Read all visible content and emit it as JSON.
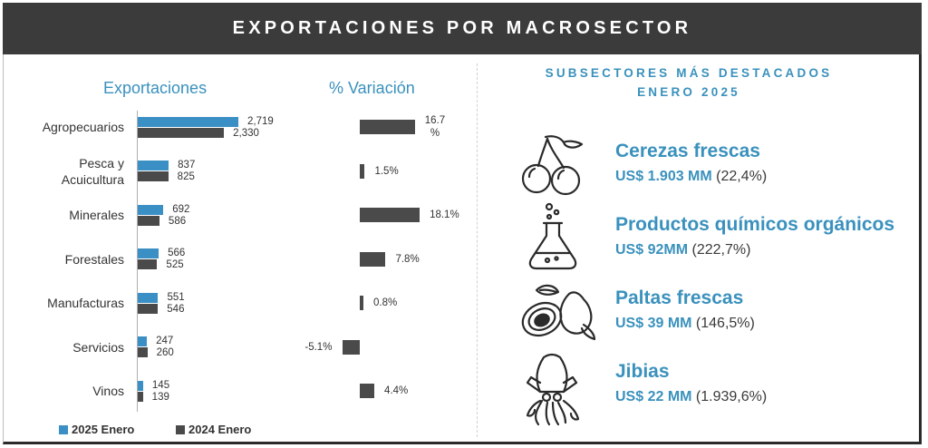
{
  "header": {
    "title": "EXPORTACIONES POR MACROSECTOR"
  },
  "left_panel": {
    "exports_title": "Exportaciones",
    "variation_title": "% Variación",
    "legend": [
      {
        "label": "2025 Enero",
        "color": "#3a8fc4"
      },
      {
        "label": "2024 Enero",
        "color": "#4a4a4a"
      }
    ]
  },
  "chart_data": [
    {
      "type": "bar",
      "orientation": "horizontal",
      "title": "Exportaciones",
      "categories": [
        "Agropecuarios",
        "Pesca y Acuicultura",
        "Minerales",
        "Forestales",
        "Manufacturas",
        "Servicios",
        "Vinos"
      ],
      "category_lines": [
        [
          "Agropecuarios"
        ],
        [
          "Pesca y",
          "Acuicultura"
        ],
        [
          "Minerales"
        ],
        [
          "Forestales"
        ],
        [
          "Manufacturas"
        ],
        [
          "Servicios"
        ],
        [
          "Vinos"
        ]
      ],
      "series": [
        {
          "name": "2025 Enero",
          "values": [
            2719,
            837,
            692,
            566,
            551,
            247,
            145
          ],
          "labels": [
            "2,719",
            "837",
            "692",
            "566",
            "551",
            "247",
            "145"
          ],
          "color": "#3a8fc4"
        },
        {
          "name": "2024 Enero",
          "values": [
            2330,
            825,
            586,
            525,
            546,
            260,
            139
          ],
          "labels": [
            "2,330",
            "825",
            "586",
            "525",
            "546",
            "260",
            "139"
          ],
          "color": "#4a4a4a"
        }
      ],
      "xlim": [
        0,
        2719
      ],
      "legend_position": "bottom"
    },
    {
      "type": "bar",
      "orientation": "horizontal",
      "title": "% Variación",
      "categories": [
        "Agropecuarios",
        "Pesca y Acuicultura",
        "Minerales",
        "Forestales",
        "Manufacturas",
        "Servicios",
        "Vinos"
      ],
      "values": [
        16.7,
        1.5,
        18.1,
        7.8,
        0.8,
        -5.1,
        4.4
      ],
      "labels": [
        "16.7 %",
        "1.5%",
        "18.1%",
        "7.8%",
        "0.8%",
        "-5.1%",
        "4.4%"
      ],
      "color": "#4a4a4a"
    }
  ],
  "right_panel": {
    "title_line1": "SUBSECTORES MÁS DESTACADOS",
    "title_line2": "ENERO 2025",
    "items": [
      {
        "name": "Cerezas frescas",
        "value": "US$ 1.903 MM",
        "change": "(22,4%)",
        "icon": "cherries-icon"
      },
      {
        "name": "Productos químicos orgánicos",
        "value": "US$ 92MM",
        "change": "(222,7%)",
        "icon": "flask-icon"
      },
      {
        "name": "Paltas frescas",
        "value": "US$ 39 MM",
        "change": "(146,5%)",
        "icon": "avocado-icon"
      },
      {
        "name": "Jibias",
        "value": "US$ 22 MM",
        "change": "(1.939,6%)",
        "icon": "squid-icon"
      }
    ]
  }
}
